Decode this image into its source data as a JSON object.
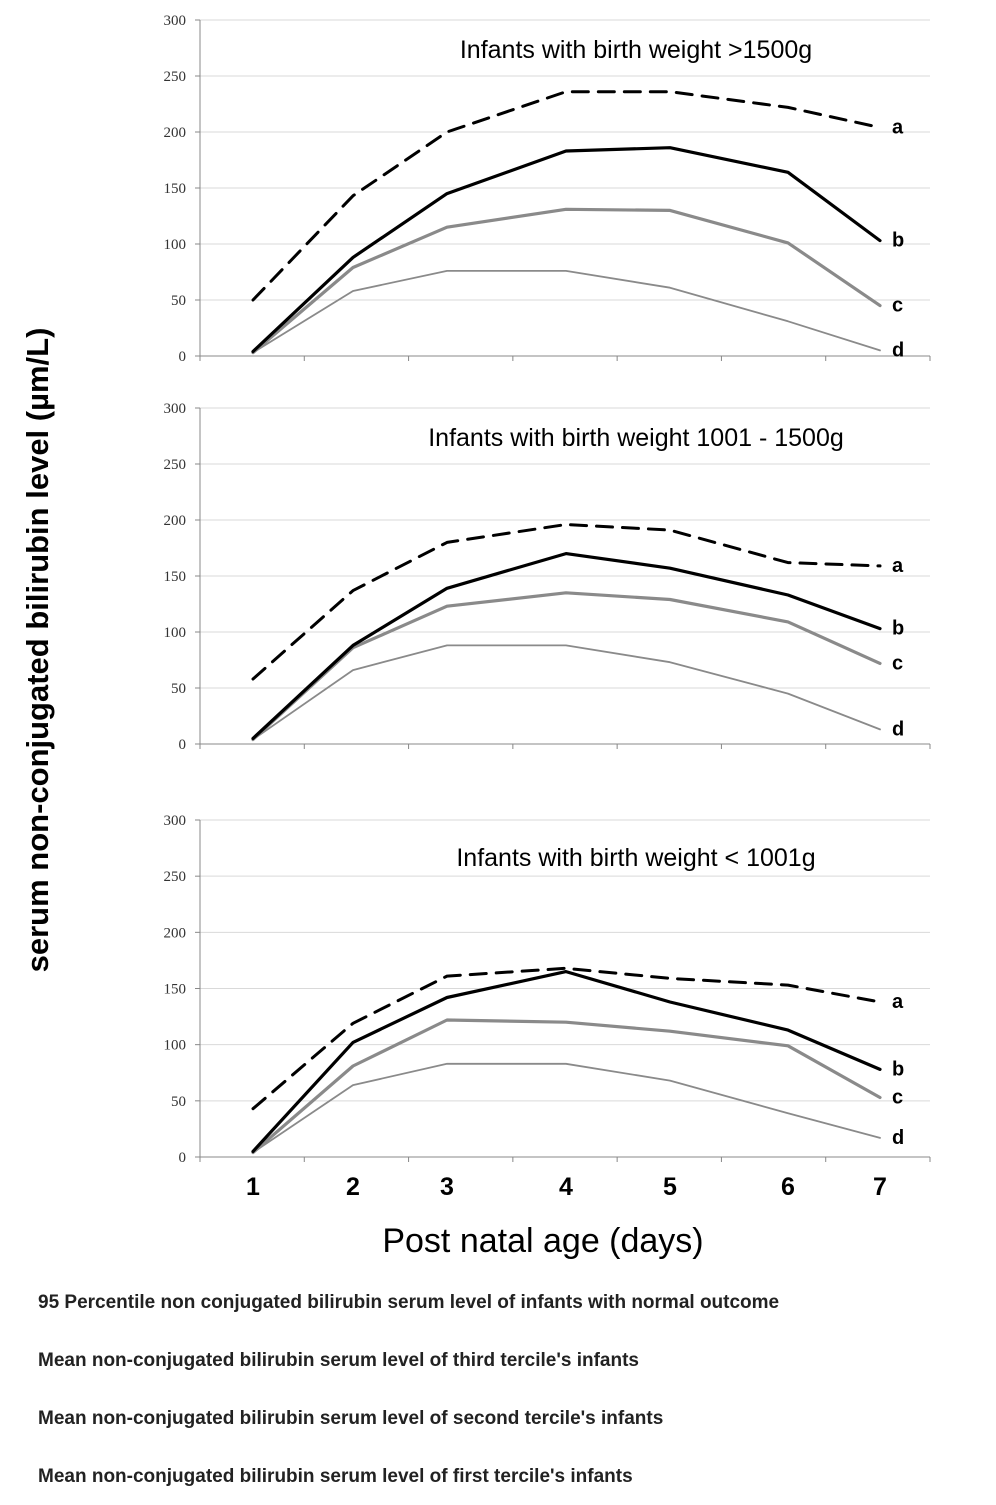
{
  "chart_data": {
    "type": "line",
    "ylabel": "serum non-conjugated bilirubin level  (µm/L)",
    "xlabel": "Post natal age (days)",
    "ylim": [
      0,
      300
    ],
    "yticks": [
      0,
      50,
      100,
      150,
      200,
      250,
      300
    ],
    "xticks": [
      1,
      2,
      3,
      4,
      5,
      6,
      7
    ],
    "grid": "horizontal",
    "series_styles": [
      {
        "key": "a",
        "color": "#000000",
        "dash": true,
        "width": 3
      },
      {
        "key": "b",
        "color": "#000000",
        "dash": false,
        "width": 3.2
      },
      {
        "key": "c",
        "color": "#8a8a8a",
        "dash": false,
        "width": 3.2
      },
      {
        "key": "d",
        "color": "#8a8a8a",
        "dash": false,
        "width": 1.8
      }
    ],
    "panels": [
      {
        "title": "Infants with birth weight  >1500g",
        "series": [
          {
            "key": "a",
            "x": [
              1,
              2,
              3,
              4,
              5,
              6,
              7
            ],
            "values": [
              50,
              143,
              200,
              236,
              236,
              222,
              204
            ]
          },
          {
            "key": "b",
            "x": [
              1,
              2,
              3,
              4,
              5,
              6,
              7
            ],
            "values": [
              4,
              88,
              145,
              183,
              186,
              164,
              103
            ]
          },
          {
            "key": "c",
            "x": [
              1,
              2,
              3,
              4,
              5,
              6,
              7
            ],
            "values": [
              3,
              79,
              115,
              131,
              130,
              101,
              45
            ]
          },
          {
            "key": "d",
            "x": [
              1,
              2,
              3,
              4,
              5,
              6,
              7
            ],
            "values": [
              3,
              58,
              76,
              76,
              61,
              31,
              5
            ]
          }
        ]
      },
      {
        "title": "Infants with birth weight  1001 - 1500g",
        "series": [
          {
            "key": "a",
            "x": [
              1,
              2,
              3,
              4,
              5,
              6,
              7
            ],
            "values": [
              58,
              137,
              180,
              196,
              191,
              162,
              159
            ]
          },
          {
            "key": "b",
            "x": [
              1,
              2,
              3,
              4,
              5,
              6,
              7
            ],
            "values": [
              5,
              88,
              139,
              170,
              157,
              133,
              103
            ]
          },
          {
            "key": "c",
            "x": [
              1,
              2,
              3,
              4,
              5,
              6,
              7
            ],
            "values": [
              4,
              86,
              123,
              135,
              129,
              109,
              72
            ]
          },
          {
            "key": "d",
            "x": [
              1,
              2,
              3,
              4,
              5,
              6,
              7
            ],
            "values": [
              4,
              66,
              88,
              88,
              73,
              45,
              13
            ]
          }
        ]
      },
      {
        "title": "Infants with birth weight  < 1001g",
        "series": [
          {
            "key": "a",
            "x": [
              1,
              2,
              3,
              4,
              5,
              6,
              7
            ],
            "values": [
              43,
              119,
              161,
              168,
              159,
              153,
              138
            ]
          },
          {
            "key": "b",
            "x": [
              1,
              2,
              3,
              4,
              5,
              6,
              7
            ],
            "values": [
              5,
              102,
              142,
              165,
              138,
              113,
              78
            ]
          },
          {
            "key": "c",
            "x": [
              1,
              2,
              3,
              4,
              5,
              6,
              7
            ],
            "values": [
              4,
              81,
              122,
              120,
              112,
              99,
              53
            ]
          },
          {
            "key": "d",
            "x": [
              1,
              2,
              3,
              4,
              5,
              6,
              7
            ],
            "values": [
              4,
              64,
              83,
              83,
              68,
              39,
              17
            ]
          }
        ]
      }
    ],
    "legend": [
      "95 Percentile non conjugated bilirubin serum  level of infants with normal outcome",
      "Mean  non-conjugated bilirubin serum level of  third tercile's infants",
      "Mean  non-conjugated bilirubin serum level of  second tercile's infants",
      "Mean  non-conjugated bilirubin serum level of  first tercile's infants"
    ]
  }
}
